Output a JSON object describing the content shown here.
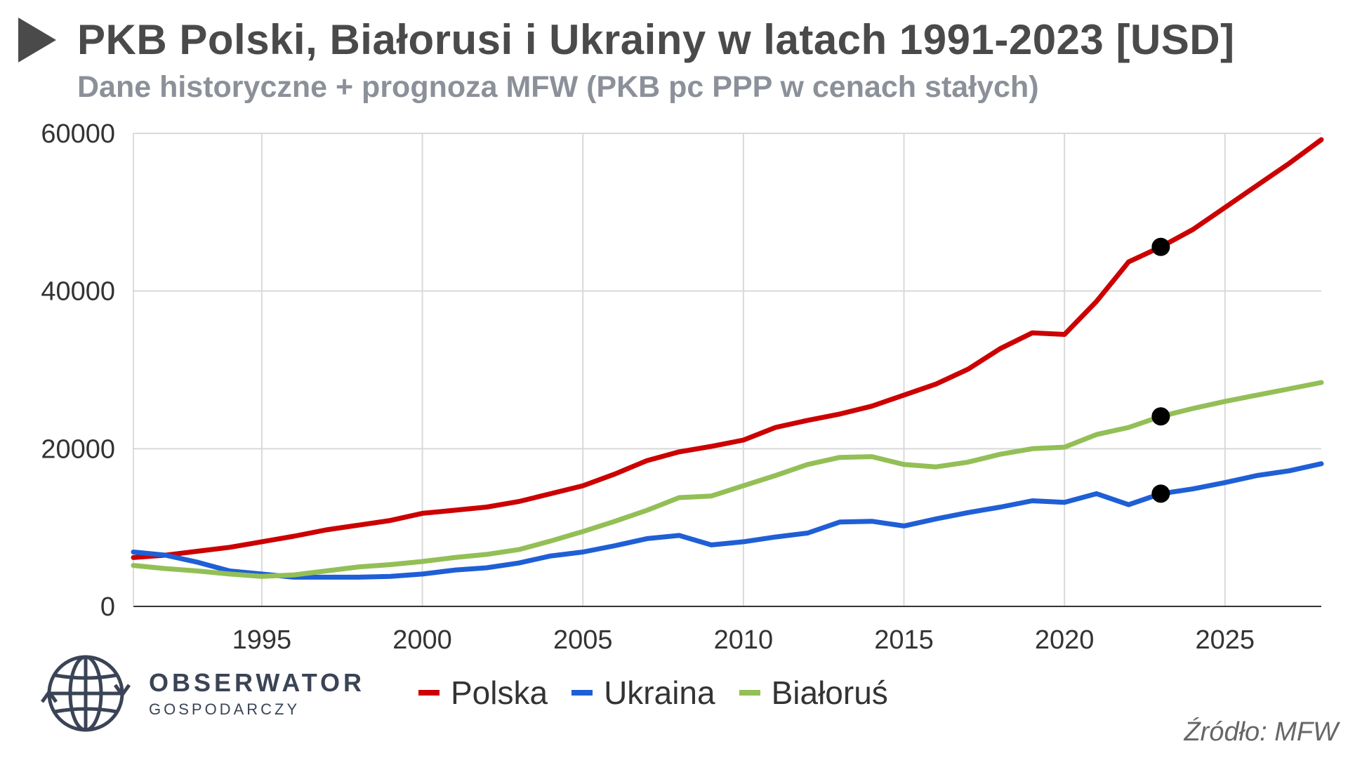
{
  "title": "PKB Polski, Białorusi i Ukrainy w latach 1991-2023 [USD]",
  "subtitle": "Dane historyczne + prognoza MFW (PKB pc PPP w cenach stałych)",
  "source": "Źródło: MFW",
  "logo": {
    "name": "OBSERWATOR",
    "sub": "GOSPODARCZY",
    "icon": "globe-arrows-icon"
  },
  "colors": {
    "polska": "#cc0000",
    "ukraina": "#1f5fd6",
    "bialorus": "#93bf56",
    "marker": "#000000",
    "grid": "#d9d9d9"
  },
  "chart_data": {
    "type": "line",
    "title": "PKB Polski, Białorusi i Ukrainy w latach 1991-2023 [USD]",
    "subtitle": "Dane historyczne + prognoza MFW (PKB pc PPP w cenach stałych)",
    "xlabel": "",
    "ylabel": "",
    "xlim": [
      1991,
      2028
    ],
    "ylim": [
      0,
      60000
    ],
    "x_ticks": [
      1995,
      2000,
      2005,
      2010,
      2015,
      2020,
      2025
    ],
    "y_ticks": [
      0,
      20000,
      40000,
      60000
    ],
    "grid": true,
    "legend_position": "bottom",
    "x": [
      1991,
      1992,
      1993,
      1994,
      1995,
      1996,
      1997,
      1998,
      1999,
      2000,
      2001,
      2002,
      2003,
      2004,
      2005,
      2006,
      2007,
      2008,
      2009,
      2010,
      2011,
      2012,
      2013,
      2014,
      2015,
      2016,
      2017,
      2018,
      2019,
      2020,
      2021,
      2022,
      2023,
      2024,
      2025,
      2026,
      2027,
      2028
    ],
    "series": [
      {
        "name": "Polska",
        "color": "#cc0000",
        "values": [
          6200,
          6500,
          7000,
          7500,
          8200,
          8900,
          9700,
          10300,
          10900,
          11800,
          12200,
          12600,
          13300,
          14300,
          15300,
          16800,
          18500,
          19600,
          20300,
          21100,
          22700,
          23600,
          24400,
          25400,
          26800,
          28200,
          30100,
          32700,
          34700,
          34500,
          38700,
          43700,
          45600,
          47800,
          50600,
          53400,
          56200,
          59200
        ]
      },
      {
        "name": "Ukraina",
        "color": "#1f5fd6",
        "values": [
          6900,
          6500,
          5600,
          4500,
          4100,
          3700,
          3700,
          3700,
          3800,
          4100,
          4600,
          4900,
          5500,
          6400,
          6900,
          7700,
          8600,
          9000,
          7800,
          8200,
          8800,
          9300,
          10700,
          10800,
          10200,
          11100,
          11900,
          12600,
          13400,
          13200,
          14300,
          12900,
          14300,
          14900,
          15700,
          16600,
          17200,
          18100
        ]
      },
      {
        "name": "Białoruś",
        "color": "#93bf56",
        "values": [
          5200,
          4800,
          4500,
          4100,
          3800,
          4000,
          4500,
          5000,
          5300,
          5700,
          6200,
          6600,
          7200,
          8300,
          9500,
          10800,
          12200,
          13800,
          14000,
          15300,
          16600,
          18000,
          18900,
          19000,
          18000,
          17700,
          18300,
          19300,
          20000,
          20200,
          21800,
          22700,
          24100,
          25100,
          26000,
          26800,
          27600,
          28400
        ]
      }
    ],
    "markers": [
      {
        "series": "Polska",
        "x": 2023,
        "y": 45600
      },
      {
        "series": "Białoruś",
        "x": 2023,
        "y": 24100
      },
      {
        "series": "Ukraina",
        "x": 2023,
        "y": 14300
      }
    ]
  }
}
